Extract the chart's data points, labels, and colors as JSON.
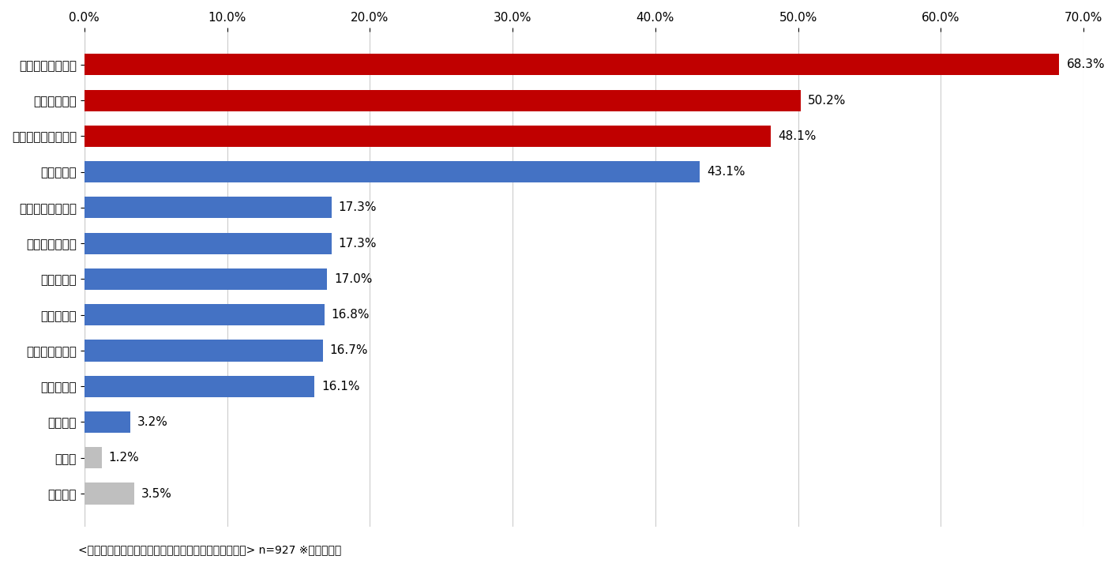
{
  "categories": [
    "カビ・ダニの発生",
    "部屋のにおい",
    "部屋干しが乾かない",
    "窓際の結露",
    "気分がすぐれない",
    "押し入れの結露",
    "体がだるい",
    "害虫の発生",
    "熱中症のリスク",
    "寝付けない",
    "食欲不振",
    "その他",
    "特にない"
  ],
  "values": [
    68.3,
    50.2,
    48.1,
    43.1,
    17.3,
    17.3,
    17.0,
    16.8,
    16.7,
    16.1,
    3.2,
    1.2,
    3.5
  ],
  "colors": [
    "#c00000",
    "#c00000",
    "#c00000",
    "#4472c4",
    "#4472c4",
    "#4472c4",
    "#4472c4",
    "#4472c4",
    "#4472c4",
    "#4472c4",
    "#4472c4",
    "#bfbfbf",
    "#bfbfbf"
  ],
  "labels": [
    "68.3%",
    "50.2%",
    "48.1%",
    "43.1%",
    "17.3%",
    "17.3%",
    "17.0%",
    "16.8%",
    "16.7%",
    "16.1%",
    "3.2%",
    "1.2%",
    "3.5%"
  ],
  "xlim": [
    0,
    70
  ],
  "xticks": [
    0,
    10,
    20,
    30,
    40,
    50,
    60,
    70
  ],
  "xtick_labels": [
    "0.0%",
    "10.0%",
    "20.0%",
    "30.0%",
    "40.0%",
    "50.0%",
    "60.0%",
    "70.0%"
  ],
  "caption": "<図５：自宅内で湿気が多いと気になること・困ること> n=927 ※複数選択可",
  "bg_color": "#ffffff",
  "bar_height": 0.6,
  "label_fontsize": 11,
  "tick_fontsize": 11,
  "caption_fontsize": 10
}
